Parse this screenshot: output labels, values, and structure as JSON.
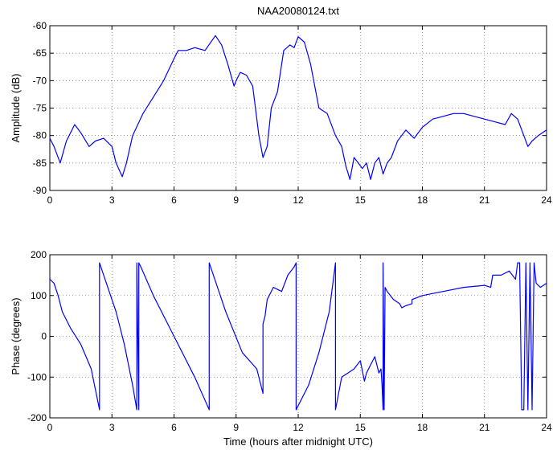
{
  "chart_data": [
    {
      "type": "line",
      "title": "NAA20080124.txt",
      "xlabel": "",
      "ylabel": "Amplitude (dB)",
      "xlim": [
        0,
        24
      ],
      "ylim": [
        -90,
        -60
      ],
      "grid": true,
      "xticks": [
        0,
        3,
        6,
        9,
        12,
        15,
        18,
        21,
        24
      ],
      "yticks": [
        -90,
        -85,
        -80,
        -75,
        -70,
        -65,
        -60
      ],
      "series": [
        {
          "color": "#0000ff",
          "x": [
            0.0,
            0.2,
            0.5,
            0.8,
            1.2,
            1.5,
            1.9,
            2.2,
            2.6,
            3.0,
            3.2,
            3.5,
            3.7,
            4.0,
            4.5,
            5.0,
            5.5,
            6.0,
            6.2,
            6.6,
            7.0,
            7.5,
            8.0,
            8.3,
            8.6,
            8.9,
            9.0,
            9.2,
            9.5,
            9.8,
            10.1,
            10.3,
            10.5,
            10.7,
            11.0,
            11.3,
            11.6,
            11.8,
            12.0,
            12.3,
            12.6,
            13.0,
            13.4,
            13.8,
            14.1,
            14.3,
            14.5,
            14.7,
            14.9,
            15.1,
            15.3,
            15.5,
            15.7,
            15.9,
            16.1,
            16.3,
            16.5,
            16.8,
            17.2,
            17.6,
            18.0,
            18.5,
            19.0,
            19.5,
            20.0,
            20.5,
            21.0,
            21.5,
            22.0,
            22.3,
            22.6,
            22.9,
            23.1,
            23.3,
            23.6,
            24.0
          ],
          "y": [
            -80.5,
            -82,
            -85,
            -81,
            -78,
            -79.5,
            -82,
            -81,
            -80.5,
            -82,
            -85,
            -87.5,
            -85,
            -80,
            -76,
            -73,
            -70,
            -66,
            -64.5,
            -64.5,
            -64,
            -64.5,
            -61.8,
            -63.5,
            -67,
            -71,
            -70,
            -68.5,
            -69,
            -71,
            -80,
            -84,
            -82,
            -75,
            -72,
            -64.5,
            -63.5,
            -64,
            -62,
            -63,
            -67,
            -75,
            -76,
            -80,
            -82,
            -85.5,
            -88,
            -84,
            -85,
            -86,
            -85,
            -88,
            -85,
            -84,
            -87,
            -85,
            -84,
            -81,
            -79,
            -80.5,
            -78.5,
            -77,
            -76.5,
            -76,
            -76,
            -76.5,
            -77,
            -77.5,
            -78,
            -76,
            -77,
            -80,
            -82,
            -81,
            -80,
            -79
          ]
        }
      ]
    },
    {
      "type": "line",
      "title": "",
      "xlabel": "Time (hours after midnight UTC)",
      "ylabel": "Phase (degrees)",
      "xlim": [
        0,
        24
      ],
      "ylim": [
        -200,
        200
      ],
      "grid": true,
      "xticks": [
        0,
        3,
        6,
        9,
        12,
        15,
        18,
        21,
        24
      ],
      "yticks": [
        -200,
        -100,
        0,
        100,
        200
      ],
      "series": [
        {
          "color": "#0000ff",
          "x": [
            0.0,
            0.2,
            0.4,
            0.6,
            1.0,
            1.5,
            2.0,
            2.4,
            2.4,
            2.8,
            3.2,
            3.6,
            4.0,
            4.2,
            4.2,
            4.3,
            4.3,
            4.4,
            5.0,
            6.0,
            7.0,
            7.7,
            7.7,
            8.5,
            9.3,
            10.0,
            10.3,
            10.3,
            10.4,
            10.5,
            10.8,
            11.2,
            11.5,
            11.8,
            11.9,
            11.9,
            12.5,
            13.0,
            13.5,
            13.8,
            13.8,
            14.1,
            14.4,
            14.7,
            15.0,
            15.2,
            15.3,
            15.5,
            15.7,
            15.9,
            16.0,
            16.05,
            16.1,
            16.1,
            16.15,
            16.2,
            16.3,
            16.6,
            16.9,
            17.0,
            17.2,
            17.5,
            17.5,
            18.0,
            19.0,
            20.0,
            21.0,
            21.3,
            21.4,
            21.8,
            22.2,
            22.5,
            22.6,
            22.7,
            22.8,
            22.9,
            23.0,
            23.1,
            23.2,
            23.3,
            23.4,
            23.5,
            23.7,
            24.0
          ],
          "y": [
            140,
            130,
            100,
            60,
            20,
            -20,
            -80,
            -180,
            180,
            120,
            60,
            -20,
            -120,
            -180,
            180,
            -180,
            180,
            170,
            100,
            0,
            -100,
            -180,
            180,
            60,
            -40,
            -80,
            -140,
            30,
            50,
            90,
            120,
            110,
            150,
            170,
            180,
            -180,
            -120,
            -40,
            60,
            180,
            -180,
            -100,
            -90,
            -80,
            -60,
            -110,
            -90,
            -70,
            -50,
            -90,
            -80,
            -120,
            -180,
            180,
            -180,
            120,
            110,
            90,
            80,
            70,
            75,
            80,
            90,
            100,
            110,
            120,
            125,
            120,
            150,
            150,
            160,
            140,
            180,
            180,
            -180,
            -180,
            180,
            -180,
            180,
            -180,
            180,
            130,
            120,
            130
          ]
        }
      ]
    }
  ]
}
